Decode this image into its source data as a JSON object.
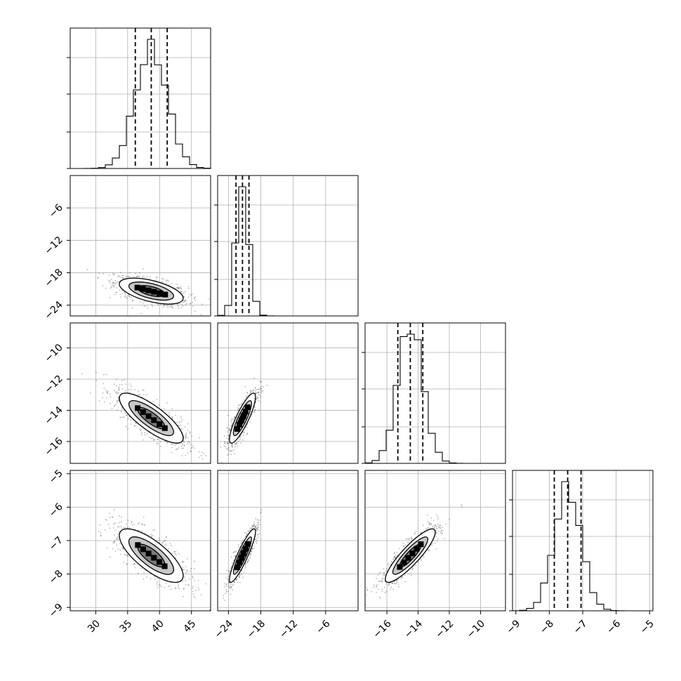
{
  "chart_data": {
    "type": "corner",
    "parameters": [
      {
        "index": 0,
        "range": [
          26,
          48
        ],
        "ticks": [
          30,
          35,
          40,
          45
        ],
        "tick_labels": [
          "30",
          "35",
          "40",
          "45"
        ],
        "quantiles": [
          36.2,
          38.7,
          41.2
        ],
        "peak_x": 38.7,
        "sd": 2.5
      },
      {
        "index": 1,
        "range": [
          -26,
          0
        ],
        "ticks": [
          -24,
          -18,
          -12,
          -6
        ],
        "tick_labels": [
          "−24",
          "−18",
          "−12",
          "−6"
        ],
        "quantiles": [
          -22.6,
          -21.4,
          -20.2
        ],
        "peak_x": -21.4,
        "sd": 1.2
      },
      {
        "index": 2,
        "range": [
          -17.4,
          -8.4
        ],
        "ticks": [
          -16,
          -14,
          -12,
          -10
        ],
        "tick_labels": [
          "−16",
          "−14",
          "−12",
          "−10"
        ],
        "quantiles": [
          -15.3,
          -14.5,
          -13.7
        ],
        "peak_x": -14.5,
        "sd": 0.8
      },
      {
        "index": 3,
        "range": [
          -9.1,
          -4.9
        ],
        "ticks": [
          -9,
          -8,
          -7,
          -6,
          -5
        ],
        "tick_labels": [
          "−9",
          "−8",
          "−7",
          "−6",
          "−5"
        ],
        "quantiles": [
          -7.85,
          -7.45,
          -7.05
        ],
        "peak_x": -7.45,
        "sd": 0.4
      }
    ],
    "correlations": [
      {
        "pair": [
          1,
          0
        ],
        "rho": -0.55
      },
      {
        "pair": [
          2,
          0
        ],
        "rho": -0.8
      },
      {
        "pair": [
          2,
          1
        ],
        "rho": 0.85
      },
      {
        "pair": [
          3,
          0
        ],
        "rho": -0.75
      },
      {
        "pair": [
          3,
          1
        ],
        "rho": 0.9
      },
      {
        "pair": [
          3,
          2
        ],
        "rho": 0.88
      }
    ],
    "histogram_bins": 20,
    "grid": true,
    "quantile_line_style": "dashed"
  }
}
